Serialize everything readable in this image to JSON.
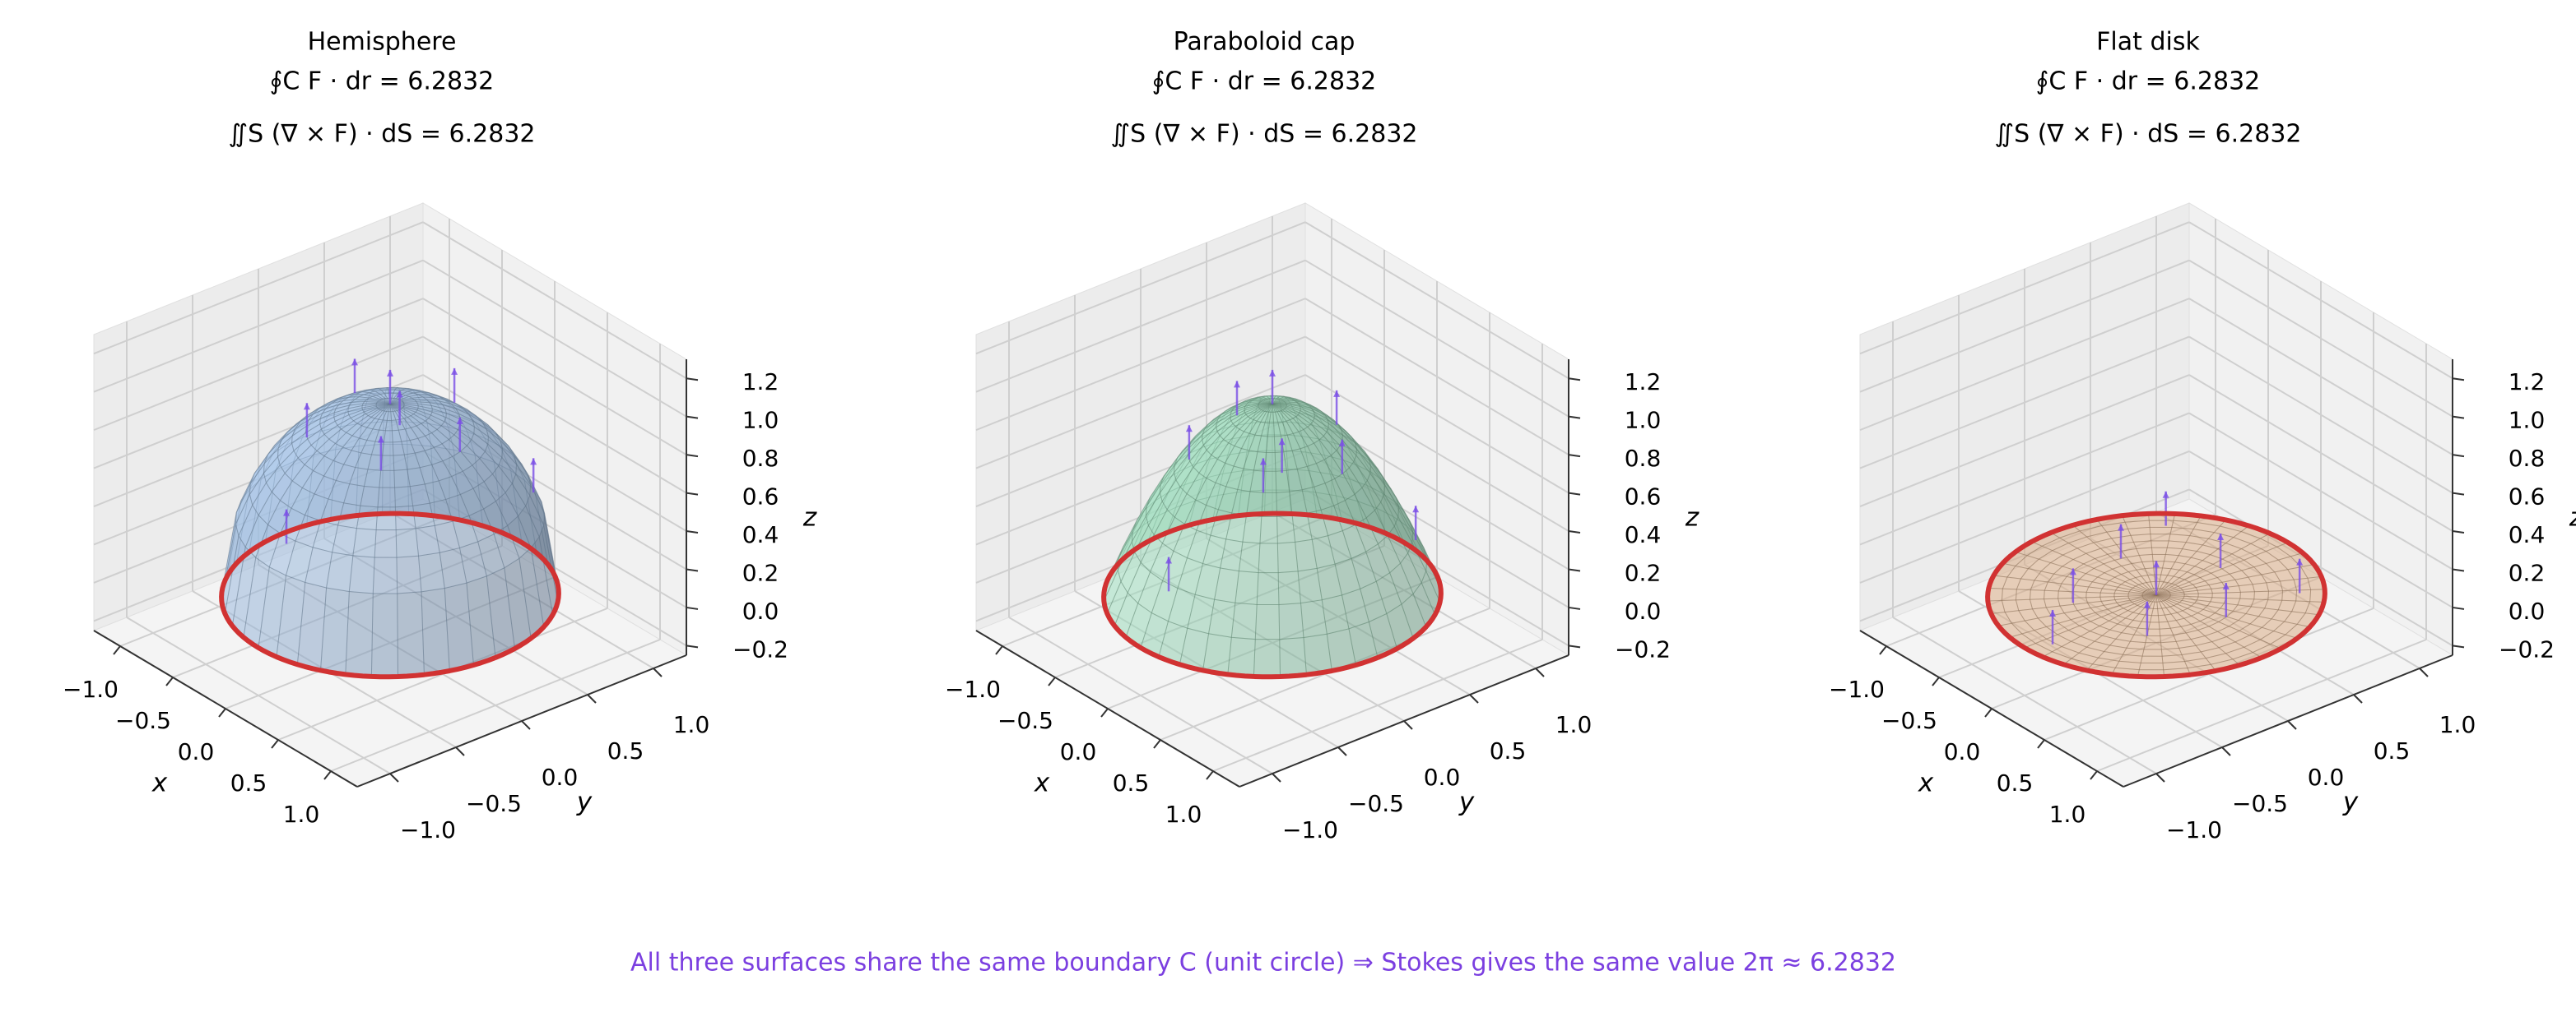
{
  "chart_data": [
    {
      "type": "surface3d",
      "surface": "hemisphere",
      "title": "Hemisphere",
      "line_integral": "∮C F · dr = 6.2832",
      "surface_integral": "∬S (∇ × F) · dS = 6.2832",
      "color": "#a9c9ef",
      "boundary_color": "#d13232",
      "arrow_color": "#7b4fe6",
      "xlabel": "x",
      "ylabel": "y",
      "zlabel": "z",
      "xlim": [
        -1.25,
        1.25
      ],
      "ylim": [
        -1.25,
        1.25
      ],
      "zlim": [
        -0.25,
        1.3
      ],
      "xticks": [
        {
          "value": -1,
          "label": "−1.0"
        },
        {
          "value": -0.5,
          "label": "−0.5"
        },
        {
          "value": 0,
          "label": "0.0"
        },
        0.5,
        {
          "value": 1,
          "label": "1.0"
        }
      ],
      "yticks": [
        {
          "value": -1,
          "label": "−1.0"
        },
        {
          "value": -0.5,
          "label": "−0.5"
        },
        {
          "value": 0,
          "label": "0.0"
        },
        0.5,
        {
          "value": 1,
          "label": "1.0"
        }
      ],
      "zticks": [
        {
          "value": -0.2,
          "label": "−0.2"
        },
        {
          "value": 0,
          "label": "0.0"
        },
        0.2,
        0.4,
        0.6,
        0.8,
        {
          "value": 1,
          "label": "1.0"
        },
        1.2
      ]
    },
    {
      "type": "surface3d",
      "surface": "paraboloid",
      "title": "Paraboloid cap",
      "line_integral": "∮C F · dr = 6.2832",
      "surface_integral": "∬S (∇ × F) · dS = 6.2832",
      "color": "#a3e3c3",
      "boundary_color": "#d13232",
      "arrow_color": "#7b4fe6",
      "xlabel": "x",
      "ylabel": "y",
      "zlabel": "z",
      "xlim": [
        -1.25,
        1.25
      ],
      "ylim": [
        -1.25,
        1.25
      ],
      "zlim": [
        -0.25,
        1.3
      ],
      "xticks": [
        {
          "value": -1,
          "label": "−1.0"
        },
        {
          "value": -0.5,
          "label": "−0.5"
        },
        {
          "value": 0,
          "label": "0.0"
        },
        0.5,
        {
          "value": 1,
          "label": "1.0"
        }
      ],
      "yticks": [
        {
          "value": -1,
          "label": "−1.0"
        },
        {
          "value": -0.5,
          "label": "−0.5"
        },
        {
          "value": 0,
          "label": "0.0"
        },
        0.5,
        {
          "value": 1,
          "label": "1.0"
        }
      ],
      "zticks": [
        {
          "value": -0.2,
          "label": "−0.2"
        },
        {
          "value": 0,
          "label": "0.0"
        },
        0.2,
        0.4,
        0.6,
        0.8,
        {
          "value": 1,
          "label": "1.0"
        },
        1.2
      ]
    },
    {
      "type": "surface3d",
      "surface": "disk",
      "title": "Flat disk",
      "line_integral": "∮C F · dr = 6.2832",
      "surface_integral": "∬S (∇ × F) · dS = 6.2832",
      "color": "#eab98f",
      "boundary_color": "#d13232",
      "arrow_color": "#7b4fe6",
      "xlabel": "x",
      "ylabel": "y",
      "zlabel": "z",
      "xlim": [
        -1.25,
        1.25
      ],
      "ylim": [
        -1.25,
        1.25
      ],
      "zlim": [
        -0.25,
        1.3
      ],
      "xticks": [
        {
          "value": -1,
          "label": "−1.0"
        },
        {
          "value": -0.5,
          "label": "−0.5"
        },
        {
          "value": 0,
          "label": "0.0"
        },
        0.5,
        {
          "value": 1,
          "label": "1.0"
        }
      ],
      "yticks": [
        {
          "value": -1,
          "label": "−1.0"
        },
        {
          "value": -0.5,
          "label": "−0.5"
        },
        {
          "value": 0,
          "label": "0.0"
        },
        0.5,
        {
          "value": 1,
          "label": "1.0"
        }
      ],
      "zticks": [
        {
          "value": -0.2,
          "label": "−0.2"
        },
        {
          "value": 0,
          "label": "0.0"
        },
        0.2,
        0.4,
        0.6,
        0.8,
        {
          "value": 1,
          "label": "1.0"
        },
        1.2
      ]
    }
  ],
  "caption": "All three surfaces share the same boundary C (unit circle) ⇒ Stokes gives the same value 2π ≈ 6.2832"
}
